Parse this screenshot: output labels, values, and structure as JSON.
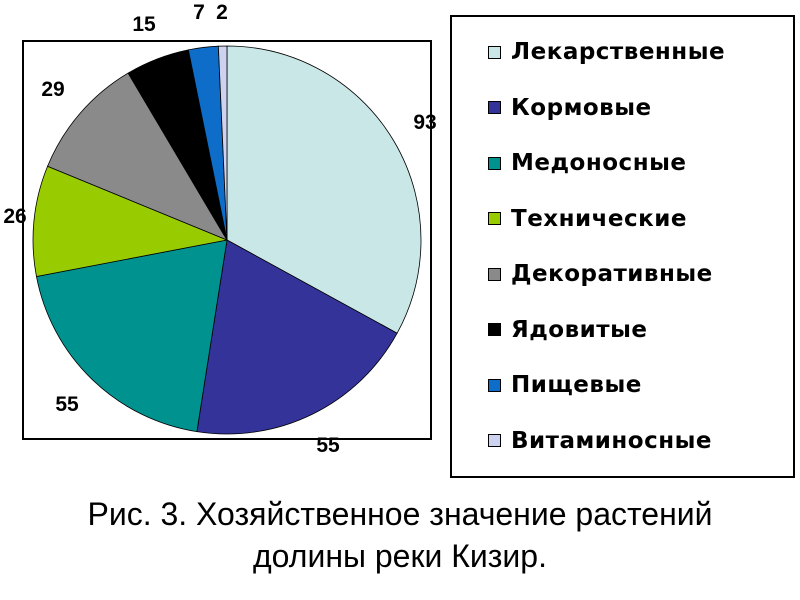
{
  "colors": {
    "background": "#ffffff",
    "frame_border": "#000000",
    "text": "#000000"
  },
  "chart_data": {
    "type": "pie",
    "direction": "clockwise",
    "start_angle_deg": 0,
    "legend_position": "right",
    "categories": [
      "Лекарственные",
      "Кормовые",
      "Медоносные",
      "Технические",
      "Декоративные",
      "Ядовитые",
      "Пищевые",
      "Витаминосные"
    ],
    "values": [
      93,
      55,
      55,
      26,
      29,
      15,
      7,
      2
    ],
    "colors": [
      "#c9e7e7",
      "#333399",
      "#00928f",
      "#99cc00",
      "#8a8a8a",
      "#000000",
      "#0d6dc8",
      "#cdd3ee"
    ]
  },
  "caption": {
    "line1": "Рис. 3. Хозяйственное значение растений",
    "line2": "долины реки Кизир."
  }
}
